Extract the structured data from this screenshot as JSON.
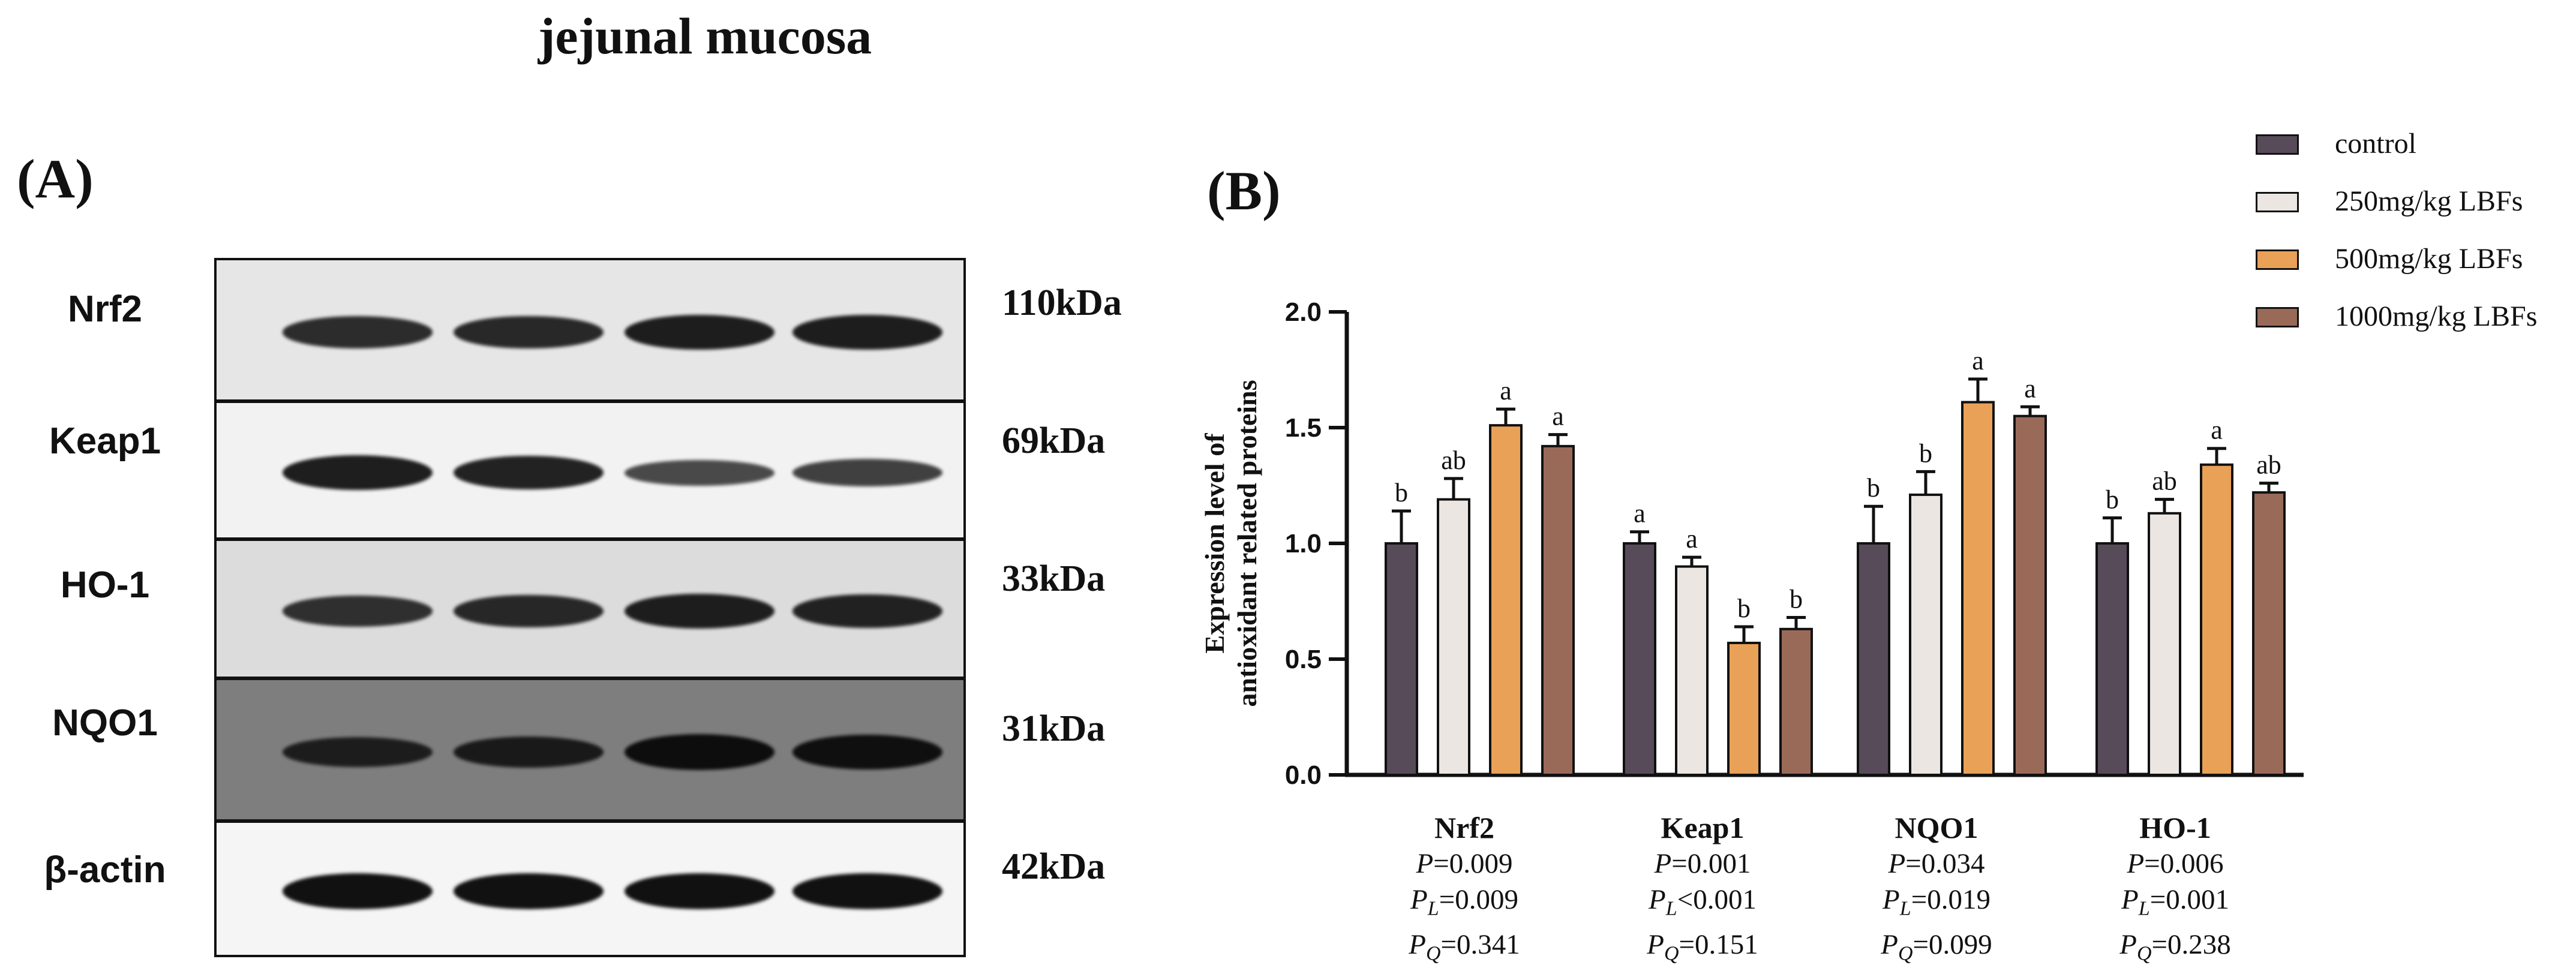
{
  "figure_title": "jejunal mucosa",
  "panel_a": {
    "label": "(A)",
    "rows": [
      {
        "name": "Nrf2",
        "kda": "110kDa",
        "bg": "#e6e6e6",
        "band_color": "#1a1a1a",
        "intensity": [
          0.8,
          0.85,
          0.95,
          0.95
        ]
      },
      {
        "name": "Keap1",
        "kda": "69kDa",
        "bg": "#f2f2f2",
        "band_color": "#1a1a1a",
        "intensity": [
          0.95,
          0.9,
          0.5,
          0.6
        ]
      },
      {
        "name": "HO-1",
        "kda": "33kDa",
        "bg": "#dcdcdc",
        "band_color": "#1a1a1a",
        "intensity": [
          0.75,
          0.85,
          0.95,
          0.9
        ]
      },
      {
        "name": "NQO1",
        "kda": "31kDa",
        "bg": "#7e7e7e",
        "band_color": "#0d0d0d",
        "intensity": [
          0.7,
          0.75,
          1.0,
          0.95
        ]
      },
      {
        "name": "β-actin",
        "kda": "42kDa",
        "bg": "#f5f5f5",
        "band_color": "#111111",
        "intensity": [
          1.0,
          1.0,
          1.0,
          1.0
        ]
      }
    ]
  },
  "panel_b": {
    "label": "(B)"
  },
  "colors": {
    "control": "#584b59",
    "lbf250": "#ebe6e2",
    "lbf500": "#e9a157",
    "lbf1000": "#9a6a58",
    "axis": "#111111"
  },
  "chart_data": {
    "type": "bar",
    "ylabel_line1": "Expression level of",
    "ylabel_line2": "antioxidant related proteins",
    "ylim": [
      0,
      2.0
    ],
    "yticks": [
      "0.0",
      "0.5",
      "1.0",
      "1.5",
      "2.0"
    ],
    "ytick_values": [
      0,
      0.5,
      1.0,
      1.5,
      2.0
    ],
    "categories": [
      "Nrf2",
      "Keap1",
      "NQO1",
      "HO-1"
    ],
    "series": [
      {
        "name": "control",
        "color_key": "control",
        "values": [
          1.0,
          1.0,
          1.0,
          1.0
        ],
        "errors": [
          0.14,
          0.05,
          0.16,
          0.11
        ],
        "letters": [
          "b",
          "a",
          "b",
          "b"
        ]
      },
      {
        "name": "250mg/kg LBFs",
        "color_key": "lbf250",
        "values": [
          1.19,
          0.9,
          1.21,
          1.13
        ],
        "errors": [
          0.09,
          0.04,
          0.1,
          0.06
        ],
        "letters": [
          "ab",
          "a",
          "b",
          "ab"
        ]
      },
      {
        "name": "500mg/kg LBFs",
        "color_key": "lbf500",
        "values": [
          1.51,
          0.57,
          1.61,
          1.34
        ],
        "errors": [
          0.07,
          0.07,
          0.1,
          0.07
        ],
        "letters": [
          "a",
          "b",
          "a",
          "a"
        ]
      },
      {
        "name": "1000mg/kg LBFs",
        "color_key": "lbf1000",
        "values": [
          1.42,
          0.63,
          1.55,
          1.22
        ],
        "errors": [
          0.05,
          0.05,
          0.04,
          0.04
        ],
        "letters": [
          "a",
          "b",
          "a",
          "ab"
        ]
      }
    ],
    "stats": [
      {
        "name": "Nrf2",
        "p": "=0.009",
        "pl": "=0.009",
        "pq": "=0.341"
      },
      {
        "name": "Keap1",
        "p": "=0.001",
        "pl": "<0.001",
        "pq": "=0.151"
      },
      {
        "name": "NQO1",
        "p": "=0.034",
        "pl": "=0.019",
        "pq": "=0.099"
      },
      {
        "name": "HO-1",
        "p": "=0.006",
        "pl": "=0.001",
        "pq": "=0.238"
      }
    ]
  }
}
